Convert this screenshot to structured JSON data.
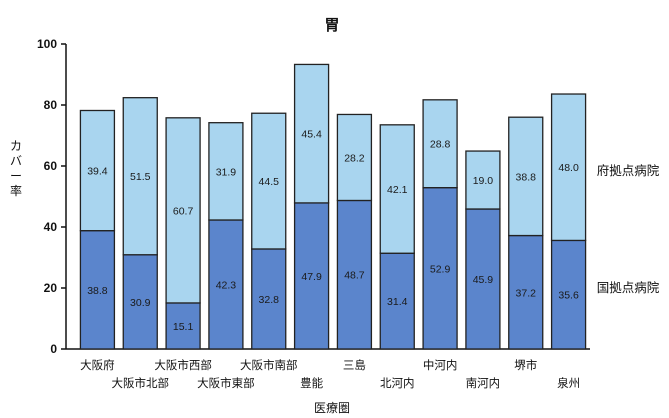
{
  "chart_data": {
    "type": "bar",
    "stacked": true,
    "title": "胃",
    "xlabel": "医療圏",
    "ylabel": "カバー率",
    "ylim": [
      0,
      100
    ],
    "yticks": [
      0,
      20,
      40,
      60,
      80,
      100
    ],
    "categories": [
      "大阪府",
      "大阪市北部",
      "大阪市西部",
      "大阪市東部",
      "大阪市南部",
      "豊能",
      "三島",
      "北河内",
      "中河内",
      "南河内",
      "堺市",
      "泉州"
    ],
    "series": [
      {
        "name": "国拠点病院",
        "color": "#5b85cc",
        "values": [
          38.8,
          30.9,
          15.1,
          42.3,
          32.8,
          47.9,
          48.7,
          31.4,
          52.9,
          45.9,
          37.2,
          35.6
        ]
      },
      {
        "name": "府拠点病院",
        "color": "#a9d5ef",
        "values": [
          39.4,
          51.5,
          60.7,
          31.9,
          44.5,
          45.4,
          28.2,
          42.1,
          28.8,
          19.0,
          38.8,
          48.0
        ]
      }
    ],
    "legend": "right",
    "grid": false
  }
}
